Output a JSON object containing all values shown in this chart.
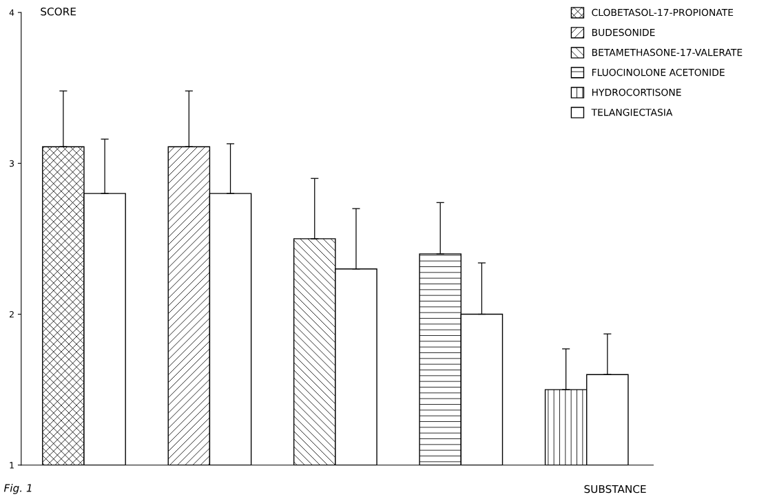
{
  "chart_data": {
    "type": "bar",
    "ylabel": "SCORE",
    "xlabel": "SUBSTANCE",
    "categories": [
      null,
      null,
      null,
      null,
      null
    ],
    "series": [
      {
        "name": "CLOBETASOL-17-PROPIONATE",
        "color": "#000000",
        "values": [
          3.11,
          null,
          null,
          null,
          null
        ],
        "errors": [
          [
            3.11,
            3.48
          ],
          null,
          null,
          null,
          null
        ]
      },
      {
        "name": "BUDESONIDE",
        "color": "#000000",
        "values": [
          null,
          3.11,
          null,
          null,
          null
        ],
        "errors": [
          null,
          [
            3.11,
            3.48
          ],
          null,
          null,
          null
        ]
      },
      {
        "name": "BETAMETHASONE-17-VALERATE",
        "color": "#000000",
        "values": [
          null,
          null,
          2.5,
          null,
          null
        ],
        "errors": [
          null,
          null,
          [
            2.5,
            2.9
          ],
          null,
          null
        ]
      },
      {
        "name": "FLUOCINOLONE ACETONIDE",
        "color": "#000000",
        "values": [
          null,
          null,
          null,
          2.4,
          null
        ],
        "errors": [
          null,
          null,
          null,
          [
            2.4,
            2.74
          ],
          null
        ]
      },
      {
        "name": "HYDROCORTISONE",
        "color": "#000000",
        "values": [
          null,
          null,
          null,
          null,
          1.5
        ],
        "errors": [
          null,
          null,
          null,
          null,
          [
            1.5,
            1.77
          ]
        ]
      },
      {
        "name": "TELANGIECTASIA",
        "color": "#ffffff",
        "values": [
          2.8,
          2.8,
          2.3,
          2.0,
          1.6
        ],
        "errors": [
          [
            2.8,
            3.16
          ],
          [
            2.8,
            3.13
          ],
          [
            2.3,
            2.7
          ],
          [
            2.0,
            2.34
          ],
          [
            1.6,
            1.87
          ]
        ]
      }
    ],
    "ylim": [
      1,
      4
    ],
    "yticks": [
      1,
      2,
      3,
      4
    ],
    "grid": false,
    "legend": "top right",
    "annotations": [
      "Fig. 1"
    ]
  }
}
